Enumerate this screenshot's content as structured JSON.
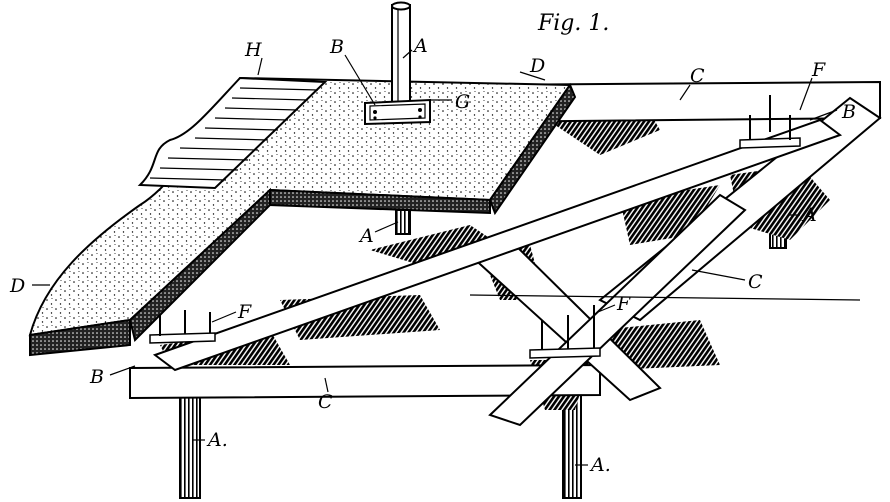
{
  "figure": {
    "title": "Fig. 1."
  },
  "labels": {
    "A_top": "A",
    "A_under": "A",
    "A_right": "A",
    "A_bottom_left": "A.",
    "A_bottom_center": "A.",
    "B_top": "B",
    "B_right": "B",
    "B_left": "B",
    "G": "G",
    "H": "H",
    "D_top": "D",
    "D_left": "D",
    "C_top": "C",
    "C_right": "C",
    "C_bottom": "C",
    "F_top": "F",
    "F_left": "F",
    "F_center": "F"
  }
}
